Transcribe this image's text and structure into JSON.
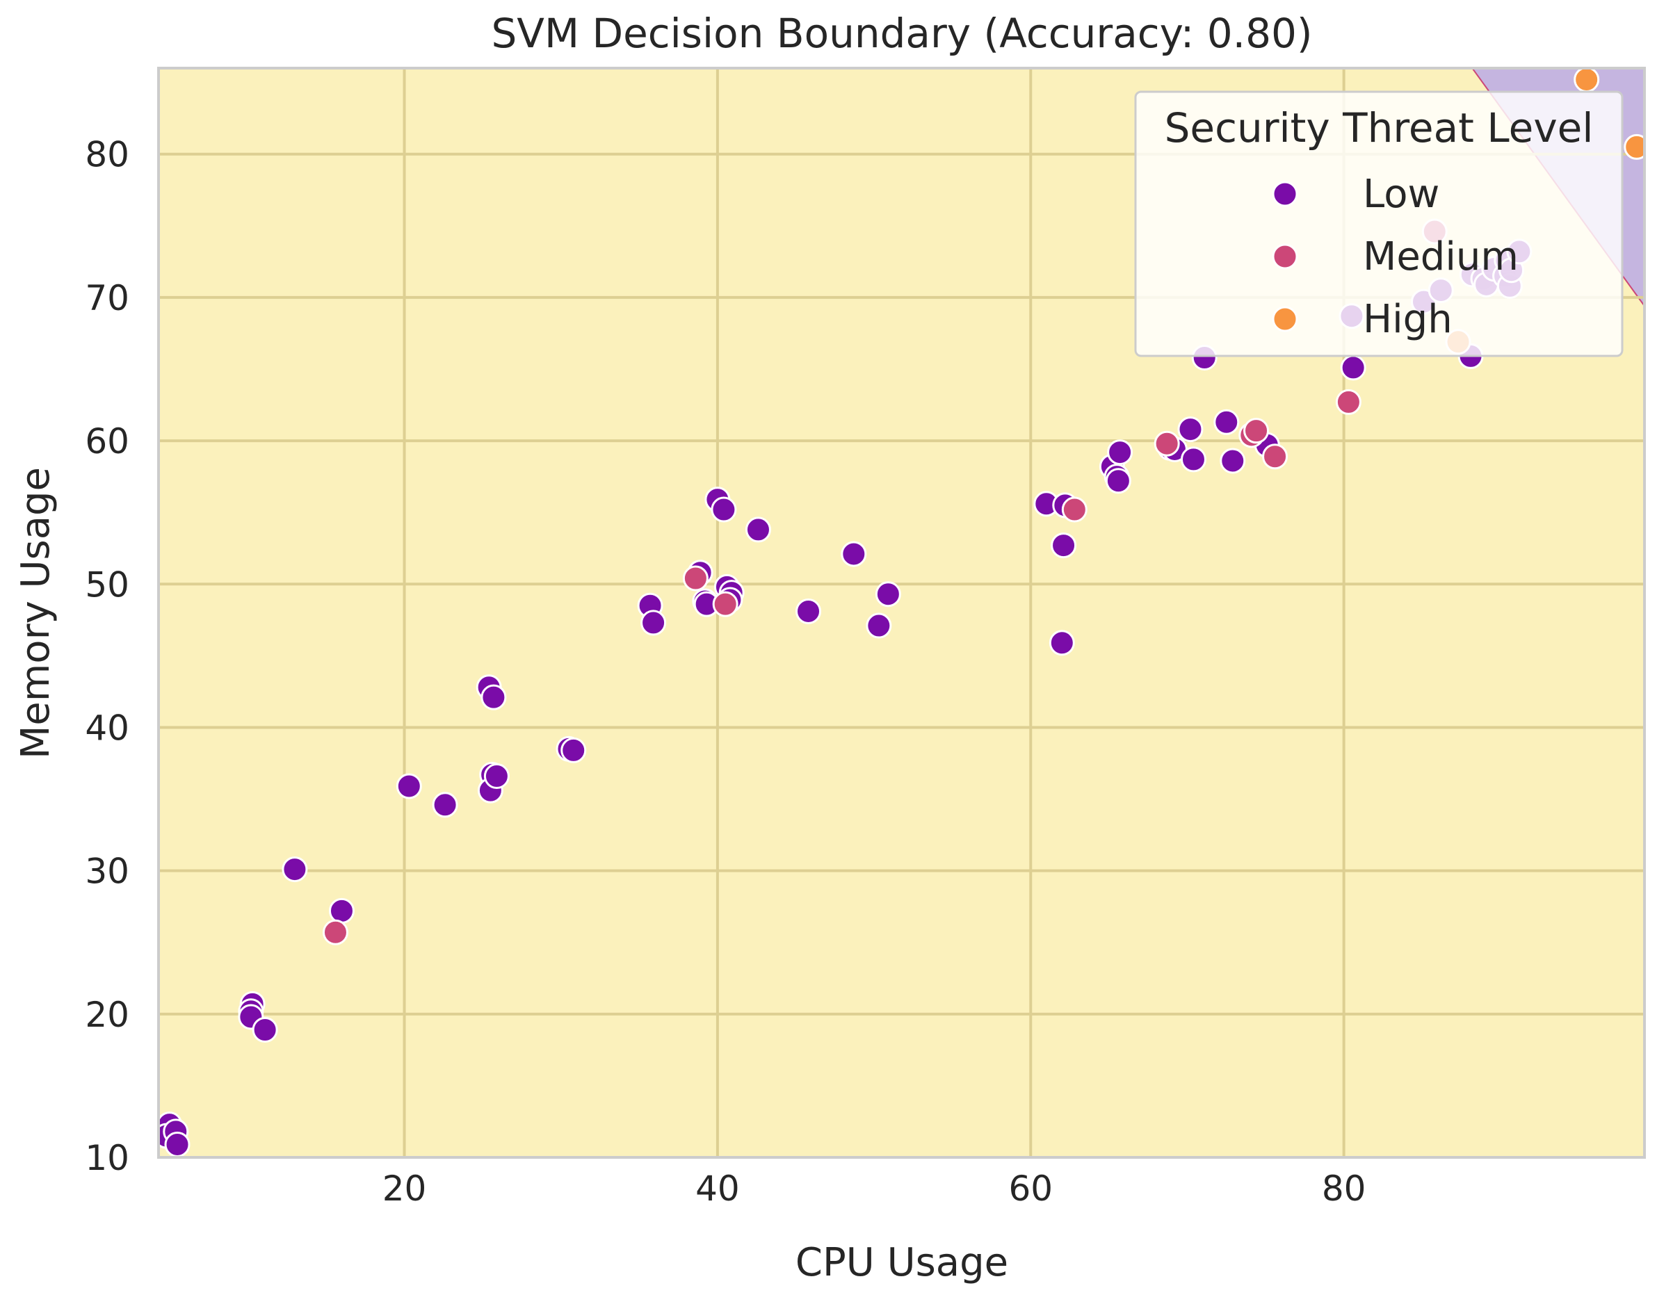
{
  "chart_data": {
    "type": "scatter",
    "title": "SVM Decision Boundary (Accuracy: 0.80)",
    "xlabel": "CPU Usage",
    "ylabel": "Memory Usage",
    "xlim": [
      4.3,
      99.2
    ],
    "ylim": [
      10,
      86
    ],
    "xticks": [
      20,
      40,
      60,
      80
    ],
    "yticks": [
      10,
      20,
      30,
      40,
      50,
      60,
      70,
      80
    ],
    "grid": true,
    "legend": {
      "title": "Security Threat Level",
      "position": "top-right",
      "entries": [
        {
          "label": "Low",
          "color": "#7a0ca8"
        },
        {
          "label": "Medium",
          "color": "#cc4778"
        },
        {
          "label": "High",
          "color": "#f89540"
        }
      ]
    },
    "regions": [
      {
        "class": "Low",
        "color": "#fbf1bc"
      },
      {
        "class": "High",
        "color": "#c5b5e0",
        "boundary": [
          [
            88.2,
            86
          ],
          [
            99.2,
            69.4
          ]
        ]
      }
    ],
    "series": [
      {
        "name": "Low",
        "color": "#7a0ca8",
        "points": [
          [
            5.0,
            12.3
          ],
          [
            4.8,
            11.5
          ],
          [
            5.4,
            11.8
          ],
          [
            5.5,
            10.9
          ],
          [
            10.3,
            20.7
          ],
          [
            10.2,
            20.2
          ],
          [
            10.2,
            19.8
          ],
          [
            11.1,
            18.9
          ],
          [
            13.0,
            30.1
          ],
          [
            16.0,
            27.2
          ],
          [
            20.3,
            35.9
          ],
          [
            22.6,
            34.6
          ],
          [
            25.4,
            42.8
          ],
          [
            25.7,
            42.1
          ],
          [
            25.6,
            36.7
          ],
          [
            25.5,
            35.6
          ],
          [
            25.9,
            36.6
          ],
          [
            30.5,
            38.5
          ],
          [
            30.8,
            38.4
          ],
          [
            35.7,
            48.5
          ],
          [
            35.9,
            47.3
          ],
          [
            38.9,
            50.8
          ],
          [
            39.2,
            48.8
          ],
          [
            39.3,
            48.6
          ],
          [
            40.0,
            55.9
          ],
          [
            40.4,
            55.2
          ],
          [
            40.6,
            49.8
          ],
          [
            40.9,
            49.4
          ],
          [
            40.8,
            48.9
          ],
          [
            42.6,
            53.8
          ],
          [
            45.8,
            48.1
          ],
          [
            48.7,
            52.1
          ],
          [
            50.3,
            47.1
          ],
          [
            50.9,
            49.3
          ],
          [
            61.0,
            55.6
          ],
          [
            62.1,
            52.7
          ],
          [
            62.2,
            55.5
          ],
          [
            62.0,
            45.9
          ],
          [
            65.2,
            58.2
          ],
          [
            65.5,
            57.5
          ],
          [
            65.6,
            57.2
          ],
          [
            65.7,
            59.2
          ],
          [
            68.9,
            59.5
          ],
          [
            69.2,
            59.4
          ],
          [
            70.2,
            60.8
          ],
          [
            70.4,
            58.7
          ],
          [
            71.1,
            65.8
          ],
          [
            72.5,
            61.3
          ],
          [
            72.9,
            58.6
          ],
          [
            75.1,
            59.7
          ],
          [
            80.5,
            68.7
          ],
          [
            80.6,
            65.1
          ],
          [
            85.1,
            69.7
          ],
          [
            86.2,
            70.5
          ],
          [
            88.1,
            65.9
          ],
          [
            88.2,
            71.6
          ],
          [
            88.9,
            71.3
          ],
          [
            89.1,
            70.9
          ],
          [
            89.6,
            72.0
          ],
          [
            90.3,
            71.5
          ],
          [
            90.4,
            72.6
          ],
          [
            90.6,
            70.8
          ],
          [
            90.7,
            71.9
          ],
          [
            91.2,
            73.2
          ]
        ]
      },
      {
        "name": "Medium",
        "color": "#cc4778",
        "points": [
          [
            15.6,
            25.7
          ],
          [
            38.6,
            50.4
          ],
          [
            40.5,
            48.6
          ],
          [
            62.8,
            55.2
          ],
          [
            68.7,
            59.8
          ],
          [
            74.1,
            60.4
          ],
          [
            74.4,
            60.7
          ],
          [
            75.6,
            58.9
          ],
          [
            80.3,
            62.7
          ],
          [
            85.8,
            74.6
          ]
        ]
      },
      {
        "name": "High",
        "color": "#f89540",
        "points": [
          [
            87.3,
            66.9
          ],
          [
            95.5,
            85.2
          ],
          [
            98.7,
            80.5
          ]
        ]
      }
    ]
  }
}
